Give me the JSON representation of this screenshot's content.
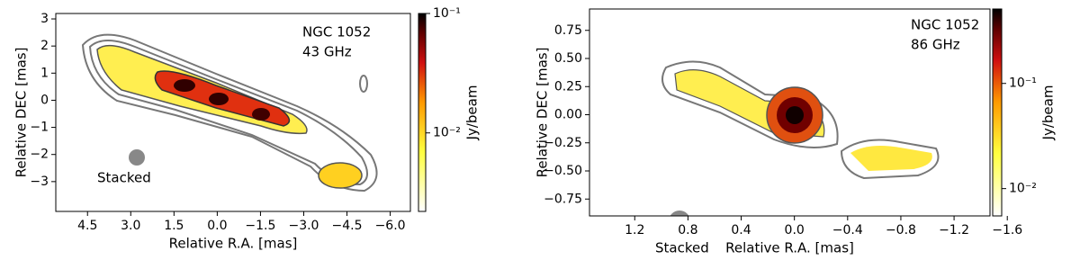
{
  "chart_data": [
    {
      "type": "contour",
      "colormap": "hot_r",
      "annotation": [
        "NGC 1052",
        "43 GHz"
      ],
      "beam_label": "Stacked",
      "xlabel": "Relative R.A. [mas]",
      "ylabel": "Relative DEC [mas]",
      "colorbar_label": "Jy/beam",
      "xlim": [
        5.6,
        -6.7
      ],
      "ylim": [
        -4.1,
        3.2
      ],
      "xticks": [
        4.5,
        {
          "value": 3,
          "label": "3.0"
        },
        1.5,
        {
          "value": 0,
          "label": "0.0"
        },
        {
          "value": -1.5,
          "label": "−1.5"
        },
        {
          "value": -3,
          "label": "−3.0"
        },
        {
          "value": -4.5,
          "label": "−4.5"
        },
        {
          "value": -6,
          "label": "−6.0"
        }
      ],
      "yticks": [
        3,
        2,
        1,
        0,
        {
          "value": -1,
          "label": "−1"
        },
        {
          "value": -2,
          "label": "−2"
        },
        {
          "value": -3,
          "label": "−3"
        }
      ],
      "clim": [
        0.0022,
        0.1
      ],
      "clog": true,
      "cticks": [
        {
          "value": 0.1,
          "label": "10⁻¹"
        },
        {
          "value": 0.01,
          "label": "10⁻²"
        }
      ]
    },
    {
      "type": "contour",
      "colormap": "hot_r",
      "annotation": [
        "NGC 1052",
        "86 GHz"
      ],
      "beam_label": "Stacked",
      "xlabel": "Relative R.A. [mas]",
      "ylabel": "Relative DEC [mas]",
      "colorbar_label": "Jy/beam",
      "xlim": [
        1.54,
        -1.47
      ],
      "ylim": [
        -0.9,
        0.94
      ],
      "xticks": [
        1.2,
        0.8,
        0.4,
        {
          "value": 0,
          "label": "0.0"
        },
        {
          "value": -0.4,
          "label": "−0.4"
        },
        {
          "value": -0.8,
          "label": "−0.8"
        },
        {
          "value": -1.2,
          "label": "−1.2"
        },
        {
          "value": -1.6,
          "label": "−1.6"
        }
      ],
      "yticks": [
        0.75,
        {
          "value": 0.5,
          "label": "0.50"
        },
        0.25,
        {
          "value": 0,
          "label": "0.00"
        },
        {
          "value": -0.25,
          "label": "−0.25"
        },
        {
          "value": -0.5,
          "label": "−0.50"
        },
        {
          "value": -0.75,
          "label": "−0.75"
        }
      ],
      "clim": [
        0.0055,
        0.51
      ],
      "clog": true,
      "cticks": [
        {
          "value": 0.1,
          "label": "10⁻¹"
        },
        {
          "value": 0.01,
          "label": "10⁻²"
        }
      ]
    }
  ]
}
